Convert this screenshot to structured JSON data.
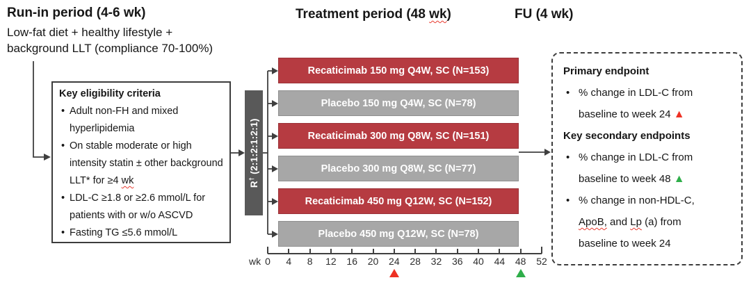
{
  "phases": {
    "runin_title": "Run-in period (4-6 wk)",
    "runin_sub_line1": "Low-fat diet + healthy lifestyle +",
    "runin_sub_line2": "background LLT (compliance 70-100%)",
    "treatment_title_pre": "Treatment period (48 ",
    "treatment_title_wavy": "wk",
    "treatment_title_post": ")",
    "fu_title": "FU (4 wk)"
  },
  "eligibility": {
    "title": "Key eligibility criteria",
    "items": [
      {
        "text": "Adult non-FH and mixed hyperlipidemia",
        "wavy": ""
      },
      {
        "text": "On stable moderate or high intensity statin ± other background LLT* for ≥4 ",
        "wavy": "wk"
      },
      {
        "text": "LDL-C ≥1.8 or ≥2.6 mmol/L for patients with or w/o ASCVD",
        "wavy": ""
      },
      {
        "text": "Fasting TG ≤5.6 mmol/L",
        "wavy": ""
      }
    ]
  },
  "randomization": {
    "r": "R",
    "sup": "†",
    "ratio": " (2:1:2:1:2:1)"
  },
  "arms": [
    {
      "label": "Recaticimab 150 mg Q4W, SC (N=153)",
      "type": "recaticimab"
    },
    {
      "label": "Placebo 150 mg Q4W, SC (N=78)",
      "type": "placebo"
    },
    {
      "label": "Recaticimab 300 mg Q8W, SC (N=151)",
      "type": "recaticimab"
    },
    {
      "label": "Placebo 300 mg Q8W, SC (N=77)",
      "type": "placebo"
    },
    {
      "label": "Recaticimab 450 mg Q12W, SC (N=152)",
      "type": "recaticimab"
    },
    {
      "label": "Placebo 450 mg Q12W, SC (N=78)",
      "type": "placebo"
    }
  ],
  "axis": {
    "unit": "wk",
    "week_max": 52,
    "tick_labels": [
      "0",
      "4",
      "8",
      "12",
      "16",
      "20",
      "24",
      "28",
      "32",
      "36",
      "40",
      "44",
      "48",
      "52"
    ],
    "markers": [
      {
        "week": 24,
        "color": "#ee3124"
      },
      {
        "week": 48,
        "color": "#2fae4a"
      }
    ]
  },
  "endpoints": {
    "primary_heading": "Primary endpoint",
    "primary_item_text": "% change in LDL-C from baseline to week 24 ",
    "primary_marker": "▲",
    "secondary_heading": "Key secondary endpoints",
    "secondary_item1_text": "% change in LDL-C from baseline to week 48 ",
    "secondary_item1_marker": "▲",
    "secondary_item2_seg1": "% change in non-HDL-C, ",
    "secondary_item2_wavy1": "ApoB,",
    "secondary_item2_seg2": " and ",
    "secondary_item2_wavy2": "Lp",
    "secondary_item2_seg3": " (a) from baseline to week 24"
  },
  "colors": {
    "recaticimab_bar": "#b63b41",
    "placebo_bar": "#a7a7a7",
    "randomization_box": "#595959",
    "marker_red": "#ee3124",
    "marker_green": "#2fae4a",
    "connector": "#3f3f3f"
  }
}
